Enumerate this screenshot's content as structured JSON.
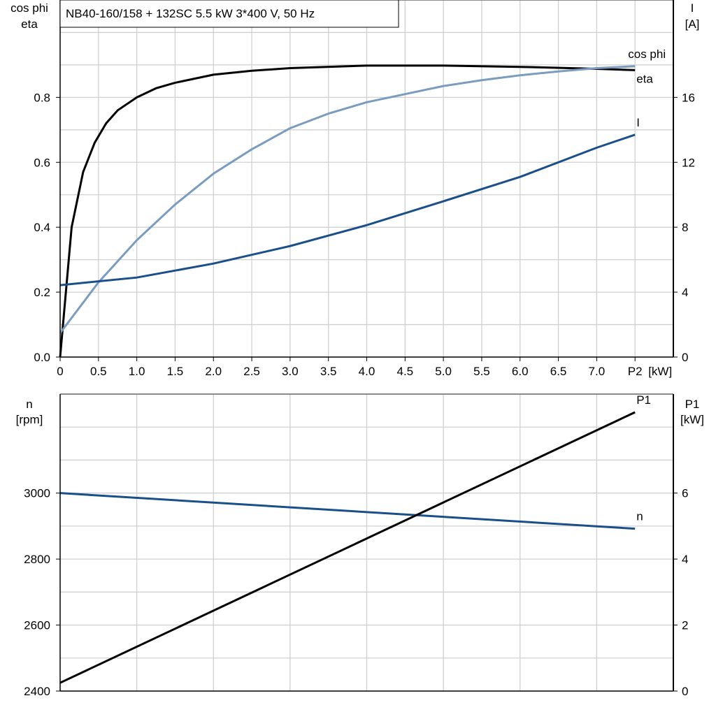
{
  "chart_data": [
    {
      "type": "line",
      "title": "NB40-160/158 + 132SC   5.5 kW   3*400 V, 50 Hz",
      "xlabel": "P2 [kW]",
      "x_axis_name": "P2",
      "x_unit": "[kW]",
      "xlim": [
        0,
        8
      ],
      "x_ticks": [
        "0",
        "0.5",
        "1.0",
        "1.5",
        "2.0",
        "2.5",
        "3.0",
        "3.5",
        "4.0",
        "4.5",
        "5.0",
        "5.5",
        "6.0",
        "6.5",
        "7.0"
      ],
      "ylabel_left": [
        "cos phi",
        "eta"
      ],
      "ylim_left": [
        0,
        1.1
      ],
      "y_ticks_left": [
        "0.0",
        "0.2",
        "0.4",
        "0.6",
        "0.8"
      ],
      "ylabel_right": [
        "I",
        "[A]"
      ],
      "ylim_right": [
        0,
        22
      ],
      "y_ticks_right": [
        "0",
        "4",
        "8",
        "12",
        "16"
      ],
      "grid": true,
      "series": [
        {
          "name": "eta",
          "axis": "left",
          "color": "#000000",
          "x": [
            0,
            0.15,
            0.3,
            0.45,
            0.6,
            0.75,
            1.0,
            1.25,
            1.5,
            2.0,
            2.5,
            3.0,
            4.0,
            5.0,
            6.0,
            7.0,
            7.5
          ],
          "y": [
            0,
            0.4,
            0.57,
            0.66,
            0.72,
            0.76,
            0.8,
            0.828,
            0.845,
            0.87,
            0.882,
            0.89,
            0.898,
            0.898,
            0.894,
            0.888,
            0.884
          ]
        },
        {
          "name": "cos phi",
          "axis": "left",
          "color": "#7a9cbf",
          "x": [
            0,
            0.5,
            1.0,
            1.5,
            2.0,
            2.5,
            3.0,
            3.5,
            4.0,
            4.5,
            5.0,
            5.5,
            6.0,
            6.5,
            7.0,
            7.5
          ],
          "y": [
            0.074,
            0.23,
            0.36,
            0.47,
            0.565,
            0.64,
            0.705,
            0.75,
            0.785,
            0.81,
            0.835,
            0.853,
            0.868,
            0.88,
            0.89,
            0.896
          ]
        },
        {
          "name": "I",
          "axis": "right",
          "color": "#1a4f8a",
          "x": [
            0,
            1,
            2,
            3,
            4,
            5,
            6,
            7,
            7.5
          ],
          "y": [
            4.43,
            4.9,
            5.76,
            6.84,
            8.13,
            9.6,
            11.1,
            12.9,
            13.7
          ]
        }
      ]
    },
    {
      "type": "line",
      "xlim": [
        0,
        8
      ],
      "ylabel_left": [
        "n",
        "[rpm]"
      ],
      "ylim_left": [
        2400,
        3300
      ],
      "y_ticks_left": [
        "2400",
        "2600",
        "2800",
        "3000"
      ],
      "ylabel_right": [
        "P1",
        "[kW]"
      ],
      "ylim_right": [
        0,
        9
      ],
      "y_ticks_right": [
        "0",
        "2",
        "4",
        "6"
      ],
      "grid": true,
      "series": [
        {
          "name": "n",
          "axis": "left",
          "color": "#1a4f8a",
          "x": [
            0,
            7.5
          ],
          "y": [
            3000,
            2892
          ]
        },
        {
          "name": "P1",
          "axis": "right",
          "color": "#000000",
          "x": [
            0,
            7.5
          ],
          "y": [
            0.25,
            8.45
          ]
        }
      ]
    }
  ]
}
